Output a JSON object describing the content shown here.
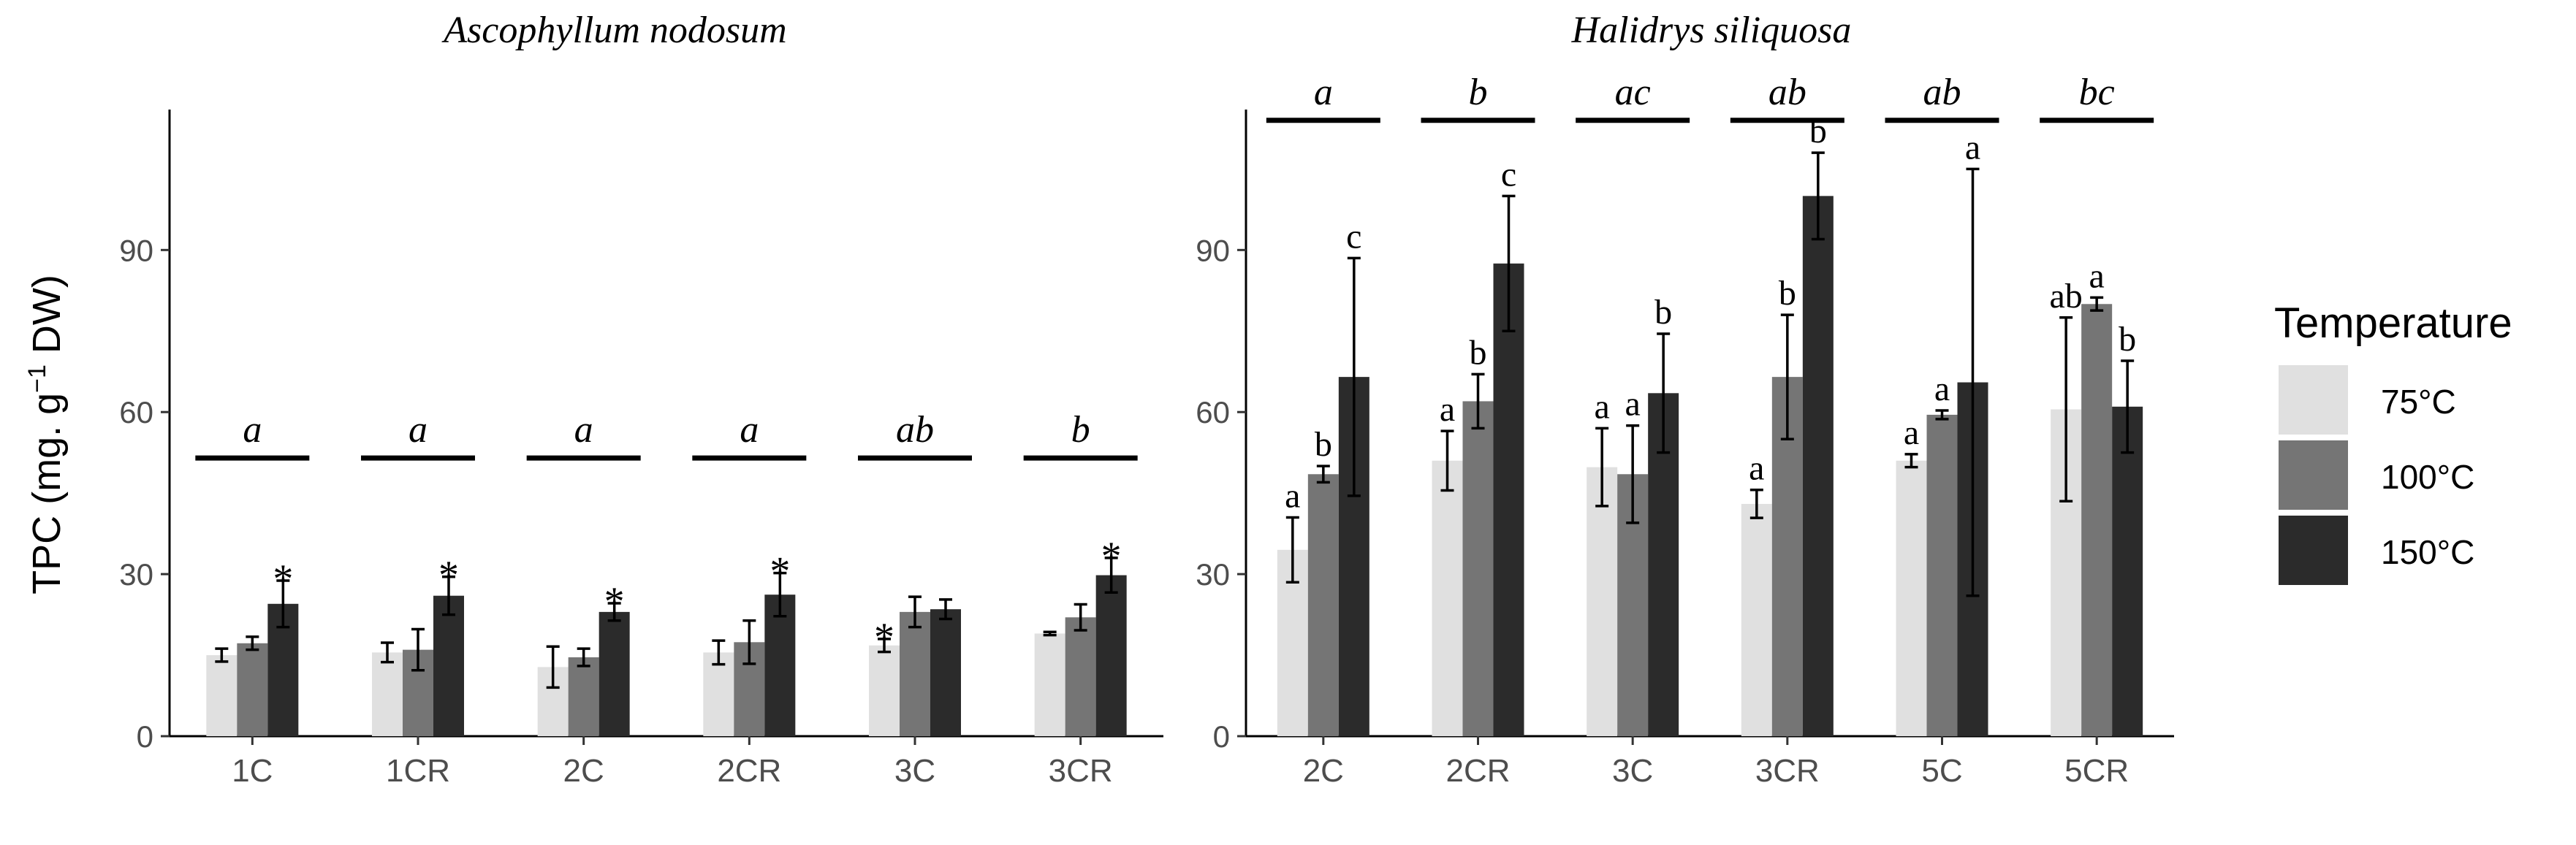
{
  "chart_data": [
    {
      "type": "bar",
      "title": "Ascophyllum nodosum",
      "ylabel": "TPC (mg. g-1 DW)",
      "ylim": [
        0,
        116
      ],
      "yticks": [
        0,
        30,
        60,
        90
      ],
      "categories": [
        "1C",
        "1CR",
        "2C",
        "2CR",
        "3C",
        "3CR"
      ],
      "series": [
        {
          "name": "75°C",
          "values": [
            15,
            15.5,
            12.8,
            15.5,
            16.8,
            19
          ],
          "errors": [
            1.2,
            1.8,
            3.8,
            2.2,
            1.2,
            0.3
          ]
        },
        {
          "name": "100°C",
          "values": [
            17.2,
            16,
            14.6,
            17.4,
            23,
            22
          ],
          "errors": [
            1.2,
            3.8,
            1.6,
            4,
            2.8,
            2.4
          ]
        },
        {
          "name": "150°C",
          "values": [
            24.5,
            26,
            23,
            26.2,
            23.5,
            29.8
          ],
          "errors": [
            4.3,
            3.5,
            1.6,
            4,
            1.8,
            3.2
          ]
        }
      ],
      "bar_letters": [
        [
          "",
          "",
          "*"
        ],
        [
          "",
          "",
          "*"
        ],
        [
          "",
          "",
          "*"
        ],
        [
          "",
          "",
          "*"
        ],
        [
          "*",
          "",
          ""
        ],
        [
          "",
          "",
          "*"
        ]
      ],
      "group_letters": [
        "a",
        "a",
        "a",
        "a",
        "ab",
        "b"
      ],
      "group_line_y": 51.5
    },
    {
      "type": "bar",
      "title": "Halidrys siliquosa",
      "ylabel": "",
      "ylim": [
        0,
        116
      ],
      "yticks": [
        0,
        30,
        60,
        90
      ],
      "categories": [
        "2C",
        "2CR",
        "3C",
        "3CR",
        "5C",
        "5CR"
      ],
      "series": [
        {
          "name": "75°C",
          "values": [
            34.5,
            51,
            49.8,
            43,
            51,
            60.5
          ],
          "errors": [
            6,
            5.5,
            7.2,
            2.6,
            1.2,
            17
          ]
        },
        {
          "name": "100°C",
          "values": [
            48.5,
            62,
            48.5,
            66.5,
            59.5,
            80
          ],
          "errors": [
            1.5,
            5,
            9,
            11.5,
            0.8,
            1.2
          ]
        },
        {
          "name": "150°C",
          "values": [
            66.5,
            87.5,
            63.5,
            100,
            65.5,
            61
          ],
          "errors": [
            22,
            12.5,
            11,
            8,
            39.5,
            8.5
          ]
        }
      ],
      "bar_letters": [
        [
          "a",
          "b",
          "c"
        ],
        [
          "a",
          "b",
          "c"
        ],
        [
          "a",
          "a",
          "b"
        ],
        [
          "a",
          "b",
          "b"
        ],
        [
          "a",
          "a",
          "a"
        ],
        [
          "ab",
          "a",
          "b"
        ]
      ],
      "group_letters": [
        "a",
        "b",
        "ac",
        "ab",
        "ab",
        "bc"
      ],
      "group_line_y": 114
    }
  ],
  "legend": {
    "title": "Temperature",
    "items": [
      {
        "label": "75°C",
        "color": "#e0e0e0"
      },
      {
        "label": "100°C",
        "color": "#757575"
      },
      {
        "label": "150°C",
        "color": "#2b2b2b"
      }
    ]
  },
  "ylabel_text": {
    "main": "TPC (mg. g",
    "sup": "−1",
    "tail": " DW)"
  }
}
